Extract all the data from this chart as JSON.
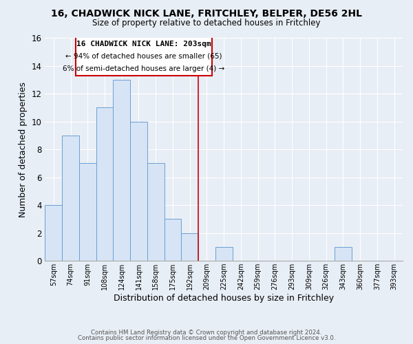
{
  "title": "16, CHADWICK NICK LANE, FRITCHLEY, BELPER, DE56 2HL",
  "subtitle": "Size of property relative to detached houses in Fritchley",
  "xlabel": "Distribution of detached houses by size in Fritchley",
  "ylabel": "Number of detached properties",
  "bar_color": "#d6e4f5",
  "bar_edge_color": "#6b9fd4",
  "bins": [
    "57sqm",
    "74sqm",
    "91sqm",
    "108sqm",
    "124sqm",
    "141sqm",
    "158sqm",
    "175sqm",
    "192sqm",
    "209sqm",
    "225sqm",
    "242sqm",
    "259sqm",
    "276sqm",
    "293sqm",
    "309sqm",
    "326sqm",
    "343sqm",
    "360sqm",
    "377sqm",
    "393sqm"
  ],
  "counts": [
    4,
    9,
    7,
    11,
    13,
    10,
    7,
    3,
    2,
    0,
    1,
    0,
    0,
    0,
    0,
    0,
    0,
    1,
    0,
    0,
    0
  ],
  "marker_color": "#cc0000",
  "ylim": [
    0,
    16
  ],
  "yticks": [
    0,
    2,
    4,
    6,
    8,
    10,
    12,
    14,
    16
  ],
  "annotation_title": "16 CHADWICK NICK LANE: 203sqm",
  "annotation_line1": "← 94% of detached houses are smaller (65)",
  "annotation_line2": "6% of semi-detached houses are larger (4) →",
  "footer1": "Contains HM Land Registry data © Crown copyright and database right 2024.",
  "footer2": "Contains public sector information licensed under the Open Government Licence v3.0.",
  "background_color": "#e8eef5",
  "grid_color": "#ffffff"
}
